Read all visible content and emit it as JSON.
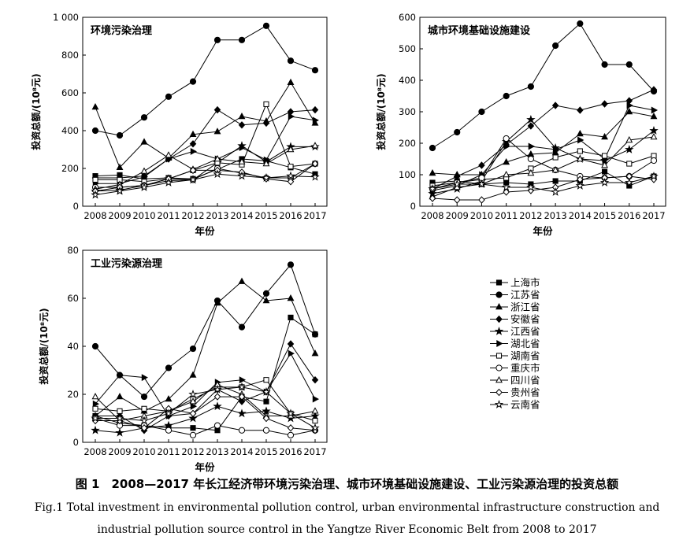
{
  "chart_data": [
    {
      "type": "line",
      "title": "环境污染治理",
      "xlabel": "年份",
      "ylabel": "投资总额/(10⁸元)",
      "x": [
        2008,
        2009,
        2010,
        2011,
        2012,
        2013,
        2014,
        2015,
        2016,
        2017
      ],
      "ylim": [
        0,
        1000
      ],
      "yticks": [
        0,
        200,
        400,
        600,
        800,
        1000
      ],
      "ytick_labels": [
        "0",
        "200",
        "400",
        "600",
        "800",
        "1 000"
      ],
      "series": [
        {
          "name": "上海市",
          "values": [
            160,
            165,
            145,
            150,
            145,
            195,
            250,
            240,
            205,
            170
          ]
        },
        {
          "name": "江苏省",
          "values": [
            400,
            375,
            470,
            580,
            660,
            880,
            880,
            955,
            770,
            720
          ]
        },
        {
          "name": "浙江省",
          "values": [
            525,
            205,
            340,
            255,
            380,
            395,
            475,
            450,
            655,
            440
          ]
        },
        {
          "name": "安徽省",
          "values": [
            150,
            150,
            160,
            250,
            330,
            510,
            430,
            440,
            500,
            510
          ]
        },
        {
          "name": "江西省",
          "values": [
            80,
            85,
            110,
            145,
            140,
            230,
            320,
            235,
            315,
            315
          ]
        },
        {
          "name": "湖北省",
          "values": [
            120,
            120,
            155,
            250,
            290,
            250,
            310,
            245,
            475,
            455
          ]
        },
        {
          "name": "湖南省",
          "values": [
            140,
            140,
            130,
            145,
            190,
            230,
            220,
            540,
            210,
            225
          ]
        },
        {
          "name": "重庆市",
          "values": [
            100,
            100,
            110,
            135,
            140,
            200,
            175,
            150,
            150,
            225
          ]
        },
        {
          "name": "四川省",
          "values": [
            90,
            115,
            185,
            270,
            195,
            250,
            235,
            225,
            300,
            320
          ]
        },
        {
          "name": "贵州省",
          "values": [
            80,
            100,
            110,
            145,
            190,
            190,
            180,
            145,
            130,
            225
          ]
        },
        {
          "name": "云南省",
          "values": [
            60,
            80,
            100,
            125,
            140,
            170,
            160,
            150,
            160,
            155
          ]
        }
      ]
    },
    {
      "type": "line",
      "title": "城市环境基础设施建设",
      "xlabel": "年份",
      "ylabel": "投资总额/(10⁸元)",
      "x": [
        2008,
        2009,
        2010,
        2011,
        2012,
        2013,
        2014,
        2015,
        2016,
        2017
      ],
      "ylim": [
        0,
        600
      ],
      "yticks": [
        0,
        100,
        200,
        300,
        400,
        500,
        600
      ],
      "ytick_labels": [
        "0",
        "100",
        "200",
        "300",
        "400",
        "500",
        "600"
      ],
      "series": [
        {
          "name": "上海市",
          "values": [
            75,
            80,
            70,
            75,
            70,
            80,
            80,
            110,
            65,
            95
          ]
        },
        {
          "name": "江苏省",
          "values": [
            185,
            235,
            300,
            350,
            380,
            510,
            580,
            450,
            450,
            365
          ]
        },
        {
          "name": "浙江省",
          "values": [
            105,
            100,
            100,
            140,
            165,
            170,
            230,
            220,
            300,
            285
          ]
        },
        {
          "name": "安徽省",
          "values": [
            55,
            95,
            130,
            195,
            255,
            320,
            305,
            325,
            335,
            370
          ]
        },
        {
          "name": "江西省",
          "values": [
            40,
            55,
            80,
            205,
            275,
            185,
            150,
            145,
            180,
            240
          ]
        },
        {
          "name": "湖北省",
          "values": [
            50,
            65,
            100,
            190,
            190,
            180,
            210,
            150,
            320,
            305
          ]
        },
        {
          "name": "湖南省",
          "values": [
            65,
            75,
            85,
            90,
            120,
            155,
            175,
            160,
            135,
            160
          ]
        },
        {
          "name": "重庆市",
          "values": [
            55,
            75,
            90,
            215,
            150,
            115,
            95,
            90,
            95,
            145
          ]
        },
        {
          "name": "四川省",
          "values": [
            30,
            60,
            70,
            100,
            105,
            115,
            150,
            130,
            210,
            220
          ]
        },
        {
          "name": "贵州省",
          "values": [
            25,
            20,
            20,
            45,
            50,
            60,
            85,
            90,
            95,
            85
          ]
        },
        {
          "name": "云南省",
          "values": [
            55,
            70,
            70,
            60,
            60,
            45,
            65,
            75,
            75,
            95
          ]
        }
      ]
    },
    {
      "type": "line",
      "title": "工业污染源治理",
      "xlabel": "年份",
      "ylabel": "投资总额/(10⁸元)",
      "x": [
        2008,
        2009,
        2010,
        2011,
        2012,
        2013,
        2014,
        2015,
        2016,
        2017
      ],
      "ylim": [
        0,
        80
      ],
      "yticks": [
        0,
        20,
        40,
        60,
        80
      ],
      "ytick_labels": [
        "0",
        "20",
        "40",
        "60",
        "80"
      ],
      "series": [
        {
          "name": "上海市",
          "values": [
            11,
            8,
            7,
            6,
            6,
            5,
            19,
            17,
            52,
            45
          ]
        },
        {
          "name": "江苏省",
          "values": [
            40,
            28,
            19,
            31,
            39,
            59,
            48,
            62,
            74,
            45
          ]
        },
        {
          "name": "浙江省",
          "values": [
            11,
            19,
            13,
            18,
            28,
            58,
            67,
            59,
            60,
            37
          ]
        },
        {
          "name": "安徽省",
          "values": [
            11,
            11,
            5,
            11,
            12,
            22,
            17,
            21,
            41,
            26
          ]
        },
        {
          "name": "江西省",
          "values": [
            5,
            4,
            6,
            7,
            10,
            15,
            12,
            13,
            10,
            11
          ]
        },
        {
          "name": "湖北省",
          "values": [
            16,
            28,
            27,
            11,
            15,
            25,
            26,
            21,
            37,
            18
          ]
        },
        {
          "name": "湖南省",
          "values": [
            14,
            13,
            14,
            13,
            18,
            23,
            23,
            26,
            12,
            9
          ]
        },
        {
          "name": "重庆市",
          "values": [
            10,
            7,
            7,
            5,
            3,
            7,
            5,
            5,
            3,
            5
          ]
        },
        {
          "name": "四川省",
          "values": [
            19,
            9,
            11,
            13,
            17,
            24,
            20,
            11,
            11,
            13
          ]
        },
        {
          "name": "贵州省",
          "values": [
            9,
            9,
            6,
            14,
            12,
            19,
            19,
            10,
            6,
            5
          ]
        },
        {
          "name": "云南省",
          "values": [
            10,
            10,
            9,
            12,
            20,
            22,
            23,
            21,
            12,
            6
          ]
        }
      ]
    }
  ],
  "legend": {
    "entries": [
      {
        "name": "上海市",
        "marker": "square-filled"
      },
      {
        "name": "江苏省",
        "marker": "circle-filled"
      },
      {
        "name": "浙江省",
        "marker": "triangle-filled"
      },
      {
        "name": "安徽省",
        "marker": "diamond-filled"
      },
      {
        "name": "江西省",
        "marker": "star-filled"
      },
      {
        "name": "湖北省",
        "marker": "triangle-right-filled"
      },
      {
        "name": "湖南省",
        "marker": "square-open"
      },
      {
        "name": "重庆市",
        "marker": "circle-open"
      },
      {
        "name": "四川省",
        "marker": "triangle-open"
      },
      {
        "name": "贵州省",
        "marker": "diamond-open"
      },
      {
        "name": "云南省",
        "marker": "star-open"
      }
    ]
  },
  "caption": {
    "zh": "图 1　2008—2017 年长江经济带环境污染治理、城市环境基础设施建设、工业污染源治理的投资总额",
    "en_line1": "Fig.1 Total investment in environmental pollution control, urban environmental infrastructure construction and",
    "en_line2": "industrial pollution source control in the Yangtze River Economic Belt from 2008 to 2017"
  }
}
